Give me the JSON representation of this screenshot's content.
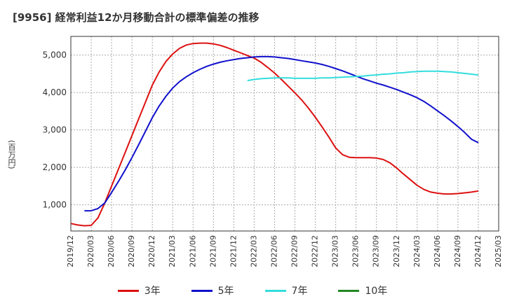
{
  "title": "[9956]  経常利益12か月移動合計の標準偏差の推移",
  "chart_data": {
    "type": "line",
    "title": "[9956]  経常利益12か月移動合計の標準偏差の推移",
    "ylabel": "(百万円)",
    "xlabel": "",
    "ylim": [
      300,
      5500
    ],
    "yticks": [
      1000,
      2000,
      3000,
      4000,
      5000
    ],
    "ytick_labels": [
      "1,000",
      "2,000",
      "3,000",
      "4,000",
      "5,000"
    ],
    "xticks": [
      "2019/12",
      "2020/03",
      "2020/06",
      "2020/09",
      "2020/12",
      "2021/03",
      "2021/06",
      "2021/09",
      "2021/12",
      "2022/03",
      "2022/06",
      "2022/09",
      "2022/12",
      "2023/03",
      "2023/06",
      "2023/09",
      "2023/12",
      "2024/03",
      "2024/06",
      "2024/09",
      "2024/12",
      "2025/03"
    ],
    "grid": true,
    "legend_position": "bottom",
    "series": [
      {
        "name": "3年",
        "color": "#dd1111",
        "x": [
          "2019/12",
          "2020/01",
          "2020/02",
          "2020/03",
          "2020/04",
          "2020/05",
          "2020/06",
          "2020/07",
          "2020/08",
          "2020/09",
          "2020/10",
          "2020/11",
          "2020/12",
          "2021/01",
          "2021/02",
          "2021/03",
          "2021/04",
          "2021/05",
          "2021/06",
          "2021/07",
          "2021/08",
          "2021/09",
          "2021/10",
          "2021/11",
          "2021/12",
          "2022/01",
          "2022/02",
          "2022/03",
          "2022/04",
          "2022/05",
          "2022/06",
          "2022/07",
          "2022/08",
          "2022/09",
          "2022/10",
          "2022/11",
          "2022/12",
          "2023/01",
          "2023/02",
          "2023/03",
          "2023/04",
          "2023/05",
          "2023/06",
          "2023/07",
          "2023/08",
          "2023/09",
          "2023/10",
          "2023/11",
          "2023/12",
          "2024/01",
          "2024/02",
          "2024/03",
          "2024/04",
          "2024/05",
          "2024/06",
          "2024/07",
          "2024/08",
          "2024/09",
          "2024/10",
          "2024/11",
          "2024/12"
        ],
        "values": [
          500,
          460,
          440,
          450,
          650,
          1050,
          1500,
          1950,
          2400,
          2850,
          3300,
          3750,
          4200,
          4550,
          4830,
          5030,
          5180,
          5270,
          5310,
          5320,
          5320,
          5300,
          5260,
          5200,
          5130,
          5060,
          4990,
          4920,
          4810,
          4670,
          4520,
          4350,
          4170,
          3990,
          3800,
          3580,
          3340,
          3080,
          2810,
          2520,
          2340,
          2270,
          2260,
          2260,
          2260,
          2250,
          2210,
          2120,
          1980,
          1820,
          1670,
          1520,
          1410,
          1340,
          1310,
          1290,
          1290,
          1300,
          1320,
          1340,
          1370
        ]
      },
      {
        "name": "5年",
        "color": "#1111cc",
        "x": [
          "2020/02",
          "2020/03",
          "2020/04",
          "2020/05",
          "2020/06",
          "2020/07",
          "2020/08",
          "2020/09",
          "2020/10",
          "2020/11",
          "2020/12",
          "2021/01",
          "2021/02",
          "2021/03",
          "2021/04",
          "2021/05",
          "2021/06",
          "2021/07",
          "2021/08",
          "2021/09",
          "2021/10",
          "2021/11",
          "2021/12",
          "2022/01",
          "2022/02",
          "2022/03",
          "2022/04",
          "2022/05",
          "2022/06",
          "2022/07",
          "2022/08",
          "2022/09",
          "2022/10",
          "2022/11",
          "2022/12",
          "2023/01",
          "2023/02",
          "2023/03",
          "2023/04",
          "2023/05",
          "2023/06",
          "2023/07",
          "2023/08",
          "2023/09",
          "2023/10",
          "2023/11",
          "2023/12",
          "2024/01",
          "2024/02",
          "2024/03",
          "2024/04",
          "2024/05",
          "2024/06",
          "2024/07",
          "2024/08",
          "2024/09",
          "2024/10",
          "2024/11",
          "2024/12"
        ],
        "values": [
          840,
          840,
          900,
          1050,
          1330,
          1620,
          1930,
          2260,
          2610,
          2970,
          3330,
          3640,
          3900,
          4120,
          4290,
          4420,
          4530,
          4620,
          4700,
          4760,
          4810,
          4850,
          4880,
          4910,
          4930,
          4950,
          4960,
          4960,
          4950,
          4930,
          4910,
          4880,
          4850,
          4820,
          4790,
          4750,
          4700,
          4640,
          4580,
          4510,
          4440,
          4370,
          4310,
          4250,
          4200,
          4140,
          4080,
          4010,
          3940,
          3860,
          3760,
          3640,
          3510,
          3380,
          3240,
          3090,
          2930,
          2750,
          2660
        ]
      },
      {
        "name": "7年",
        "color": "#33dddd",
        "x": [
          "2022/02",
          "2022/03",
          "2022/04",
          "2022/05",
          "2022/06",
          "2022/07",
          "2022/08",
          "2022/09",
          "2022/10",
          "2022/11",
          "2022/12",
          "2023/01",
          "2023/02",
          "2023/03",
          "2023/04",
          "2023/05",
          "2023/06",
          "2023/07",
          "2023/08",
          "2023/09",
          "2023/10",
          "2023/11",
          "2023/12",
          "2024/01",
          "2024/02",
          "2024/03",
          "2024/04",
          "2024/05",
          "2024/06",
          "2024/07",
          "2024/08",
          "2024/09",
          "2024/10",
          "2024/11",
          "2024/12"
        ],
        "values": [
          4320,
          4350,
          4370,
          4380,
          4390,
          4390,
          4390,
          4380,
          4380,
          4380,
          4380,
          4390,
          4390,
          4400,
          4410,
          4420,
          4430,
          4440,
          4460,
          4470,
          4490,
          4500,
          4520,
          4530,
          4550,
          4560,
          4570,
          4570,
          4570,
          4560,
          4550,
          4530,
          4510,
          4490,
          4470
        ]
      },
      {
        "name": "10年",
        "color": "#228822",
        "x": [],
        "values": []
      }
    ]
  }
}
